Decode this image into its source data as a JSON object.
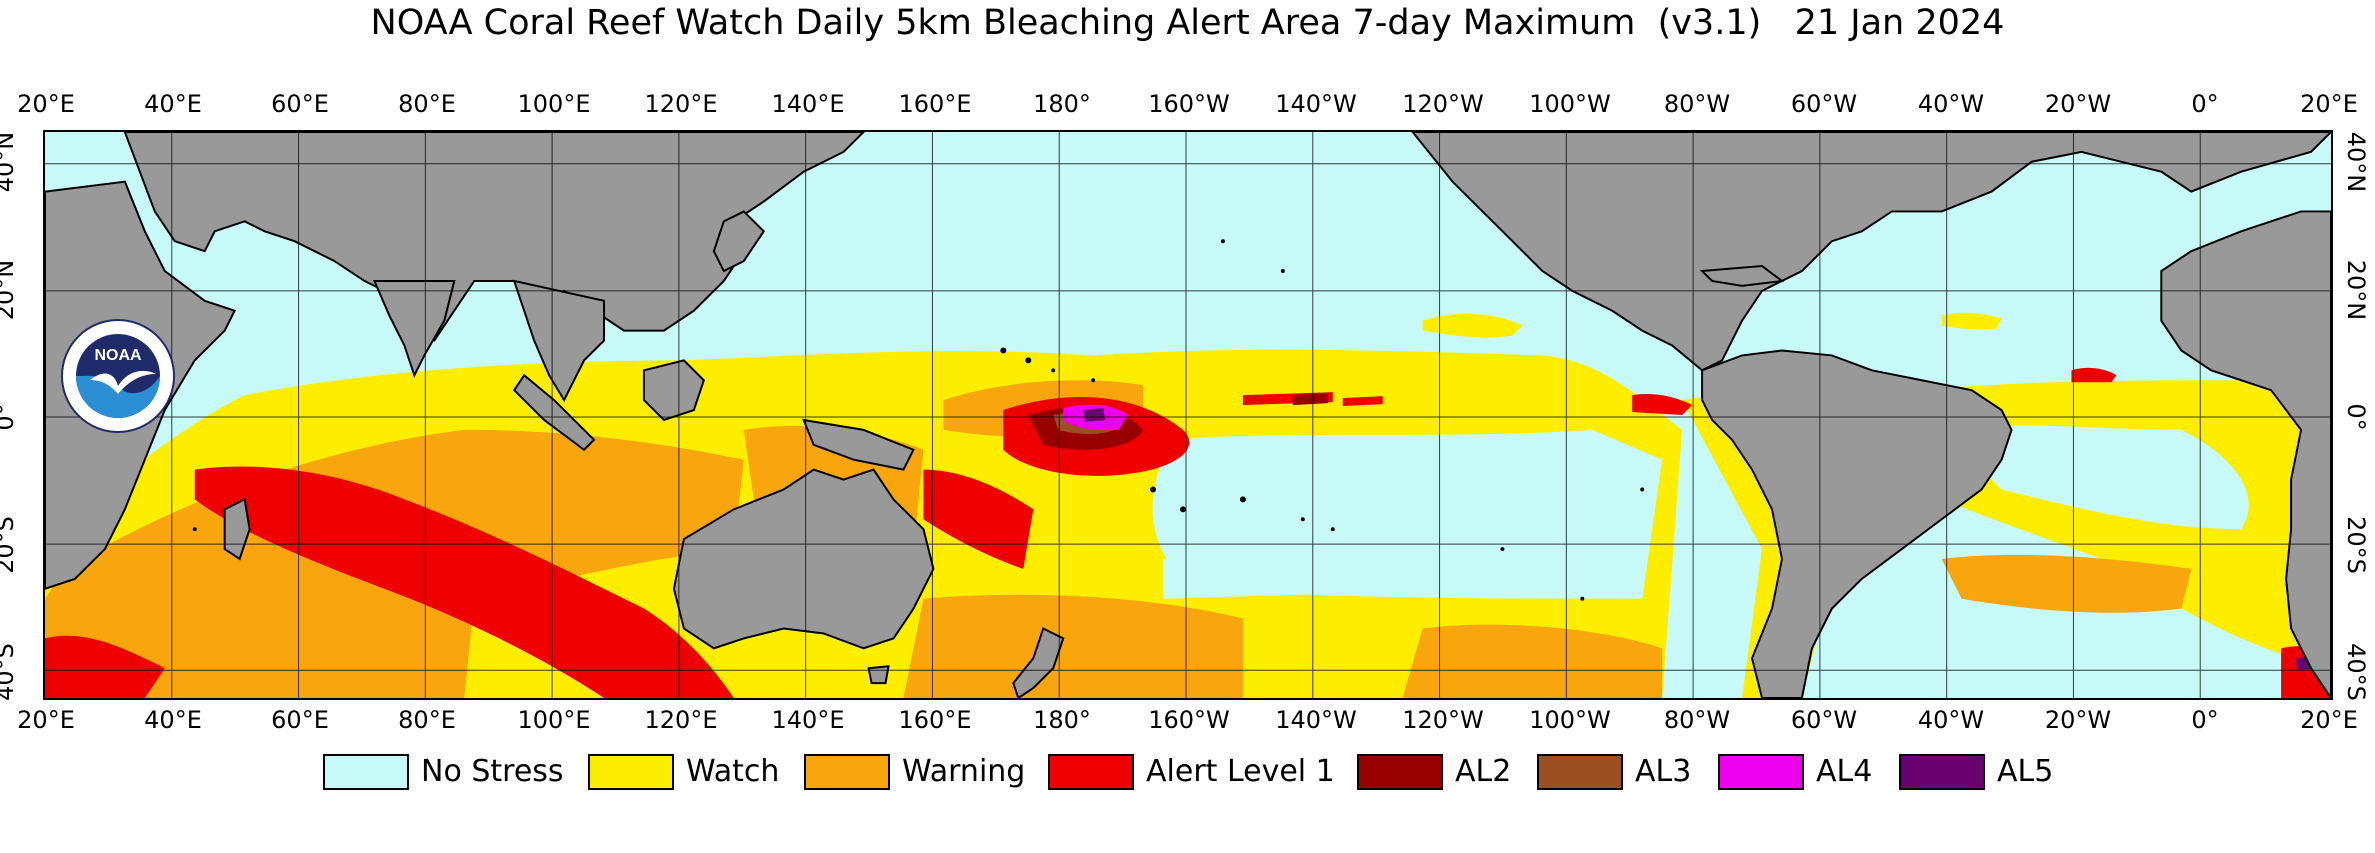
{
  "title": "NOAA Coral Reef Watch Daily 5km Bleaching Alert Area 7-day Maximum  (v3.1)   21 Jan 2024",
  "axes": {
    "lon_labels": [
      "20°E",
      "40°E",
      "60°E",
      "80°E",
      "100°E",
      "120°E",
      "140°E",
      "160°E",
      "180°",
      "160°W",
      "140°W",
      "120°W",
      "100°W",
      "80°W",
      "60°W",
      "40°W",
      "20°W",
      "0°",
      "20°E"
    ],
    "lat_labels": [
      "40°N",
      "20°N",
      "0°",
      "20°S",
      "40°S"
    ],
    "lon_range_deg_east": [
      20,
      380
    ],
    "lat_range": [
      -44,
      45
    ],
    "grid": true
  },
  "logo": {
    "text": "NOAA",
    "ring_text": "NATIONAL OCEANIC AND ATMOSPHERIC ADMINISTRATION · U.S. DEPARTMENT OF COMMERCE"
  },
  "legend": [
    {
      "label": "No Stress",
      "color": "#c6f9f8"
    },
    {
      "label": "Watch",
      "color": "#fdee00"
    },
    {
      "label": "Warning",
      "color": "#f9a50d"
    },
    {
      "label": "Alert Level 1",
      "color": "#ee0000"
    },
    {
      "label": "AL2",
      "color": "#980000"
    },
    {
      "label": "AL3",
      "color": "#9c4f23"
    },
    {
      "label": "AL4",
      "color": "#ee00ee"
    },
    {
      "label": "AL5",
      "color": "#6a0070"
    }
  ],
  "land_color": "#999999"
}
